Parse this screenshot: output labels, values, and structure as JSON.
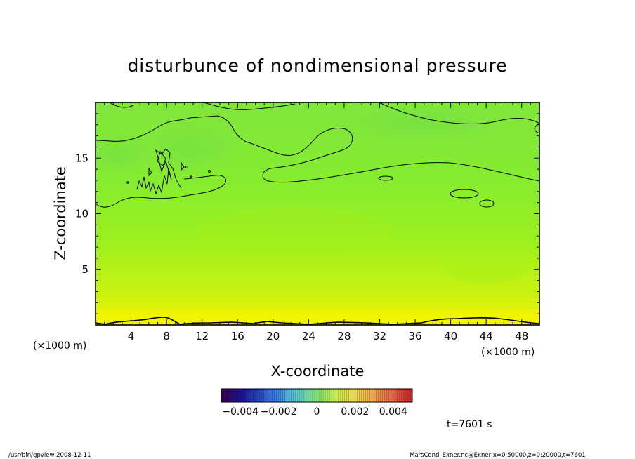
{
  "chart_data": {
    "type": "heatmap",
    "title": "disturbunce of nondimensional pressure",
    "xlabel": "X-coordinate",
    "ylabel": "Z-coordinate",
    "x_unit_left": "(×1000 m)",
    "x_unit_right": "(×1000 m)",
    "xlim": [
      0,
      50
    ],
    "ylim": [
      0,
      20
    ],
    "xticks": [
      4,
      8,
      12,
      16,
      20,
      24,
      28,
      32,
      36,
      40,
      44,
      48
    ],
    "yticks": [
      5,
      10,
      15
    ],
    "colorbar": {
      "range": [
        -0.005,
        0.005
      ],
      "tick_labels": [
        "−0.004",
        "−0.002",
        "0",
        "0.002",
        "0.004"
      ],
      "tick_values": [
        -0.004,
        -0.002,
        0,
        0.002,
        0.004
      ]
    },
    "time_label": "t=7601 s"
  },
  "footer": {
    "left": "/usr/bin/gpview   2008-12-11",
    "right": "MarsCond_Exner.nc@Exner,x=0:50000,z=0:20000,t=7601"
  },
  "colors": {
    "field_top": "#7ee83a",
    "field_mid": "#8ef02a",
    "field_bottom": "#eef200",
    "contour": "#000000"
  }
}
